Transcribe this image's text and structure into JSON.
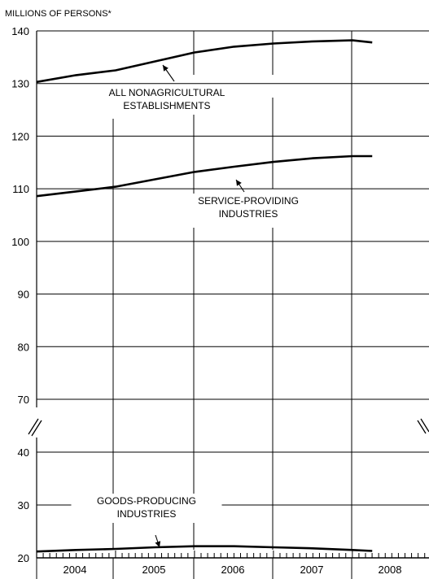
{
  "chart_data": {
    "type": "line",
    "title": "",
    "ylabel": "MILLIONS OF PERSONS*",
    "xlabel": "",
    "y_scale": "broken",
    "y_segments": [
      [
        70,
        140
      ],
      [
        20,
        40
      ]
    ],
    "yticks": [
      140,
      130,
      120,
      110,
      100,
      90,
      80,
      70,
      40,
      30,
      20
    ],
    "xlim": [
      2004.0,
      2009.0
    ],
    "x_tick_labels": [
      "2004",
      "2005",
      "2006",
      "2007",
      "2008"
    ],
    "grid": true,
    "x": [
      2004.0,
      2004.5,
      2005.0,
      2005.5,
      2006.0,
      2006.5,
      2007.0,
      2007.5,
      2008.0,
      2008.25
    ],
    "series": [
      {
        "values": [
          130.3,
          131.6,
          132.5,
          134.2,
          135.9,
          137.0,
          137.6,
          138.0,
          138.2,
          137.8
        ]
      },
      {
        "values": [
          108.6,
          109.5,
          110.4,
          111.8,
          113.2,
          114.2,
          115.1,
          115.8,
          116.2,
          116.2
        ]
      },
      {
        "values": [
          21.2,
          21.5,
          21.7,
          22.0,
          22.2,
          22.2,
          22.0,
          21.8,
          21.5,
          21.3
        ]
      }
    ],
    "annotations": [
      {
        "lines": [
          "ALL NONAGRICULTURAL",
          "ESTABLISHMENTS"
        ],
        "points_to": {
          "x": 2005.75,
          "y": 134.6
        }
      },
      {
        "lines": [
          "SERVICE-PROVIDING",
          "INDUSTRIES"
        ],
        "points_to": {
          "x": 2006.58,
          "y": 113.3
        }
      },
      {
        "lines": [
          "GOODS-PRODUCING",
          "INDUSTRIES"
        ],
        "points_to": {
          "x": 2005.5,
          "y": 22.0
        }
      }
    ]
  }
}
